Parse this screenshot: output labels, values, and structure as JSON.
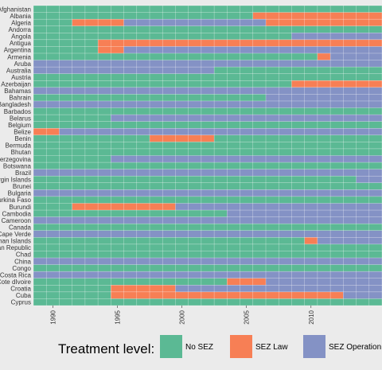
{
  "chart_data": {
    "type": "heatmap",
    "title": "",
    "xlabel": "",
    "ylabel": "",
    "x_range": [
      1989,
      2015
    ],
    "x_ticks": [
      1990,
      1995,
      2000,
      2005,
      2010
    ],
    "grid": true,
    "legend_position": "bottom",
    "legend": {
      "title": "Treatment level:",
      "levels": [
        {
          "key": "none",
          "label": "No SEZ",
          "color": "#5BB994"
        },
        {
          "key": "law",
          "label": "SEZ Law",
          "color": "#F77F55"
        },
        {
          "key": "operation",
          "label": "SEZ Operation",
          "color": "#8492C5"
        }
      ]
    },
    "rows": [
      {
        "country": "Afghanistan",
        "law_from": null,
        "op_from": null
      },
      {
        "country": "Albania",
        "law_from": 2006,
        "op_from": null
      },
      {
        "country": "Algeria",
        "law_from": 1992,
        "op_from": 1996,
        "op_to": 2006
      },
      {
        "country": "Andorra",
        "law_from": null,
        "op_from": null
      },
      {
        "country": "Angola",
        "law_from": null,
        "op_from": 2009
      },
      {
        "country": "Antigua",
        "law_from": 1994,
        "op_from": null
      },
      {
        "country": "Argentina",
        "law_from": 1994,
        "op_from": 1996
      },
      {
        "country": "Armenia",
        "law_from": 2011,
        "op_from": 2012
      },
      {
        "country": "Aruba",
        "law_from": null,
        "op_from": 1989
      },
      {
        "country": "Australia",
        "law_from": null,
        "op_from": 1989,
        "op_to": 2002
      },
      {
        "country": "Austria",
        "law_from": null,
        "op_from": null
      },
      {
        "country": "Azerbaijan",
        "law_from": 2009,
        "op_from": null
      },
      {
        "country": "Bahamas",
        "law_from": null,
        "op_from": 1989
      },
      {
        "country": "Bahrain",
        "law_from": null,
        "op_from": 2007
      },
      {
        "country": "Bangladesh",
        "law_from": null,
        "op_from": 1989
      },
      {
        "country": "Barbados",
        "law_from": null,
        "op_from": null
      },
      {
        "country": "Belarus",
        "law_from": null,
        "op_from": 1995
      },
      {
        "country": "Belgium",
        "law_from": null,
        "op_from": null
      },
      {
        "country": "Belize",
        "law_from": 1989,
        "op_from": 1991
      },
      {
        "country": "Benin",
        "law_from": 1998,
        "op_from": 2002,
        "op_to": 2002,
        "law_to": 2002
      },
      {
        "country": "Bermuda",
        "law_from": null,
        "op_from": null
      },
      {
        "country": "Bhutan",
        "law_from": null,
        "op_from": null
      },
      {
        "country": "Bosnia and Herzegovina",
        "law_from": null,
        "op_from": 1995
      },
      {
        "country": "Botswana",
        "law_from": null,
        "op_from": null
      },
      {
        "country": "Brazil",
        "law_from": null,
        "op_from": 1989
      },
      {
        "country": "British Virgin Islands",
        "law_from": null,
        "op_from": 2014
      },
      {
        "country": "Brunei",
        "law_from": null,
        "op_from": null
      },
      {
        "country": "Bulgaria",
        "law_from": null,
        "op_from": 1989
      },
      {
        "country": "Burkina Faso",
        "law_from": null,
        "op_from": null
      },
      {
        "country": "Burundi",
        "law_from": 1992,
        "op_from": 2000
      },
      {
        "country": "Cambodia",
        "law_from": null,
        "op_from": 2004
      },
      {
        "country": "Cameroon",
        "law_from": null,
        "op_from": 1989
      },
      {
        "country": "Canada",
        "law_from": null,
        "op_from": null
      },
      {
        "country": "Cape Verde",
        "law_from": null,
        "op_from": 1989
      },
      {
        "country": "Cayman Islands",
        "law_from": 2010,
        "op_from": 2011
      },
      {
        "country": "Central African Republic",
        "law_from": null,
        "op_from": null
      },
      {
        "country": "Chad",
        "law_from": null,
        "op_from": null
      },
      {
        "country": "China",
        "law_from": null,
        "op_from": 1989
      },
      {
        "country": "Congo",
        "law_from": null,
        "op_from": null
      },
      {
        "country": "Costa Rica",
        "law_from": null,
        "op_from": 1989
      },
      {
        "country": "Cote dIvoire",
        "law_from": 2004,
        "op_from": 2007
      },
      {
        "country": "Croatia",
        "law_from": 1995,
        "op_from": 2000
      },
      {
        "country": "Cuba",
        "law_from": 1995,
        "op_from": 2013
      },
      {
        "country": "Cyprus",
        "law_from": null,
        "op_from": null
      }
    ]
  }
}
